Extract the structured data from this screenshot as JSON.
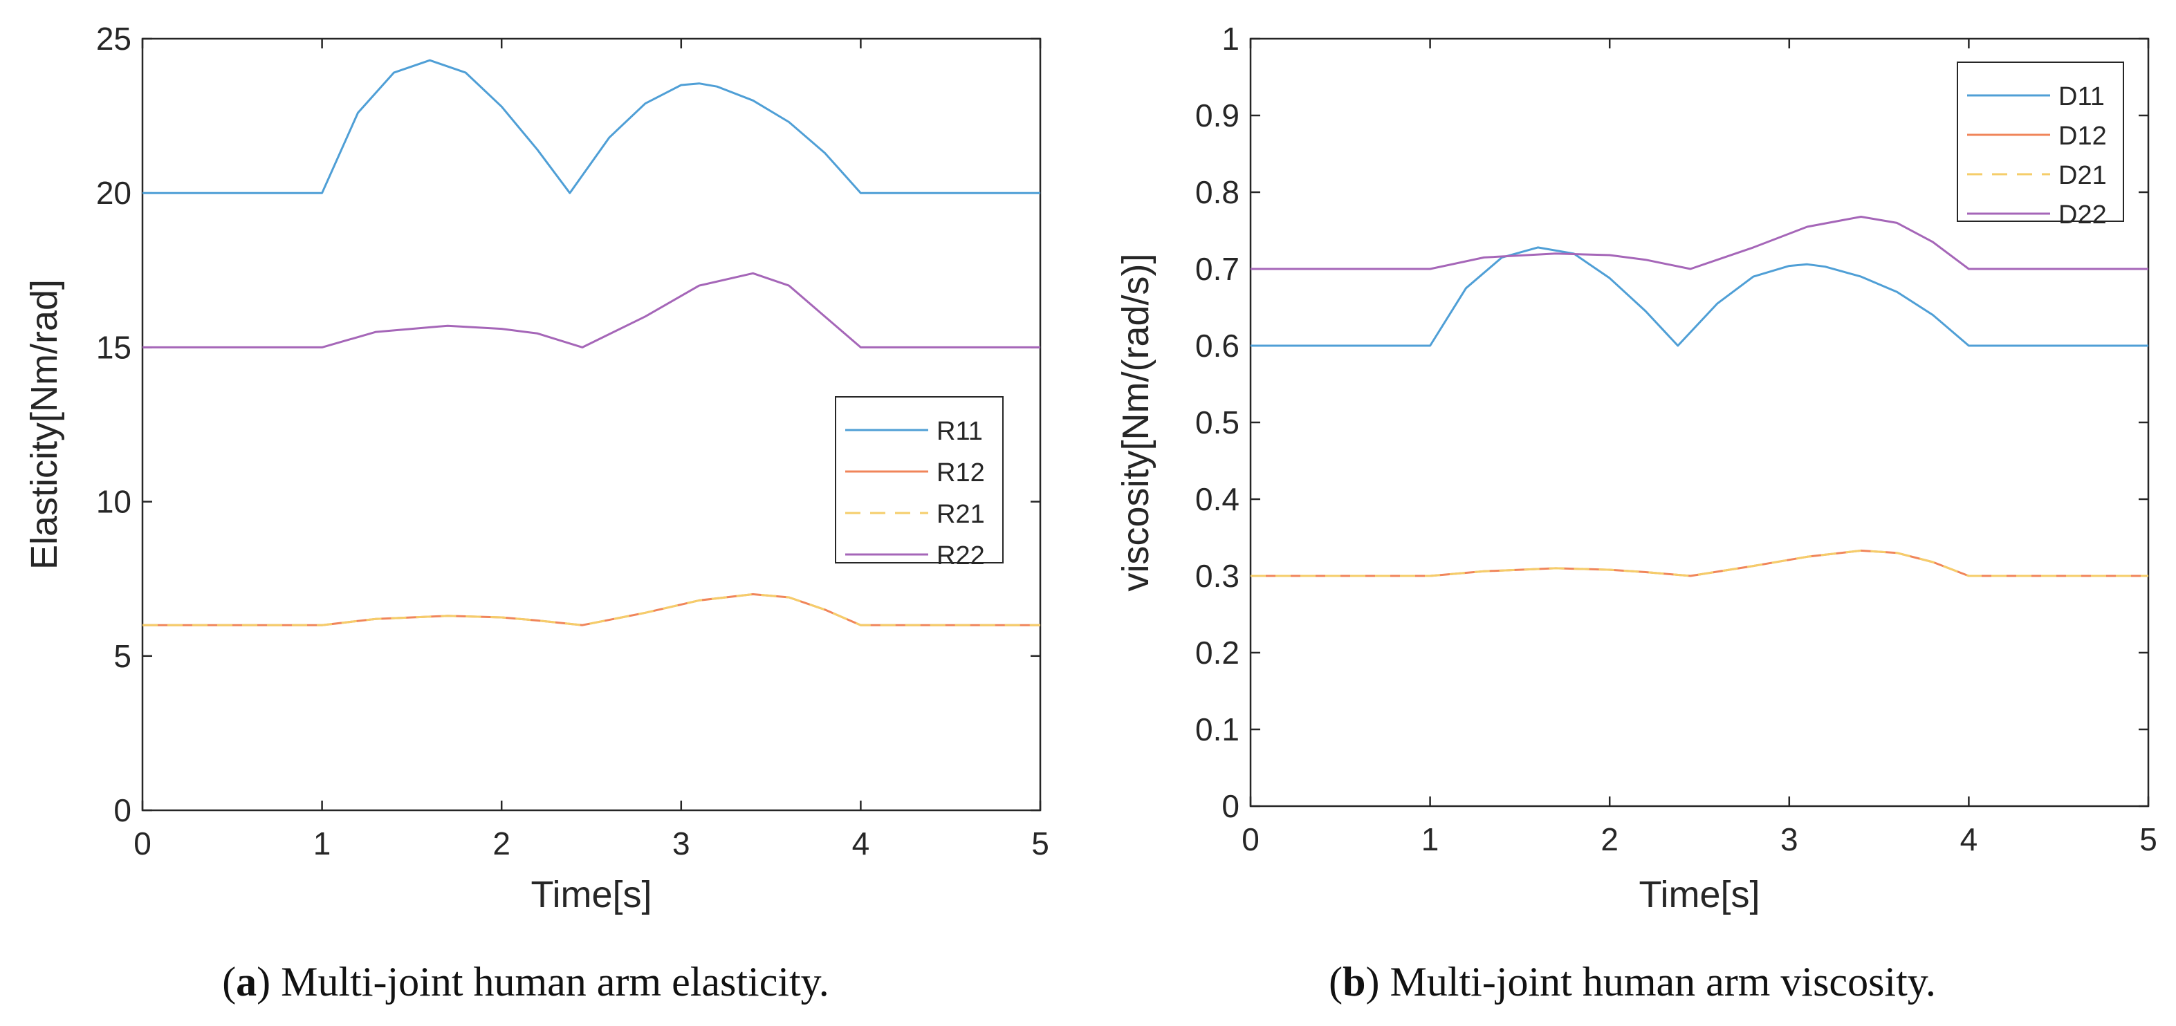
{
  "chart_data": [
    {
      "type": "line",
      "caption_letter": "a",
      "caption_text": "Multi-joint human arm elasticity.",
      "xlabel": "Time[s]",
      "ylabel": "Elasticity[Nm/rad]",
      "xlim": [
        0,
        5
      ],
      "ylim": [
        0,
        25
      ],
      "xticks": [
        0,
        1,
        2,
        3,
        4,
        5
      ],
      "xtick_labels": [
        "0",
        "1",
        "2",
        "3",
        "4",
        "5"
      ],
      "yticks": [
        0,
        5,
        10,
        15,
        20,
        25
      ],
      "ytick_labels": [
        "0",
        "5",
        "10",
        "15",
        "20",
        "25"
      ],
      "grid": false,
      "legend_position": "center-right",
      "series": [
        {
          "name": "R11",
          "color": "#4f9fd6",
          "dashed": false,
          "x": [
            0,
            1,
            1.2,
            1.4,
            1.6,
            1.8,
            2.0,
            2.2,
            2.38,
            2.6,
            2.8,
            3.0,
            3.1,
            3.2,
            3.4,
            3.6,
            3.8,
            4.0,
            5
          ],
          "y": [
            20,
            20,
            22.6,
            23.9,
            24.3,
            23.9,
            22.8,
            21.4,
            20,
            21.8,
            22.9,
            23.5,
            23.55,
            23.45,
            23.0,
            22.3,
            21.3,
            20,
            20
          ]
        },
        {
          "name": "R12",
          "color": "#f0855a",
          "dashed": false,
          "x": [
            0,
            1,
            1.3,
            1.7,
            2.0,
            2.2,
            2.45,
            2.8,
            3.1,
            3.4,
            3.6,
            3.8,
            4.0,
            5
          ],
          "y": [
            6,
            6,
            6.2,
            6.3,
            6.25,
            6.15,
            6,
            6.4,
            6.8,
            7.0,
            6.9,
            6.5,
            6,
            6
          ]
        },
        {
          "name": "R21",
          "color": "#f5cd6a",
          "dashed": true,
          "x": [
            0,
            1,
            1.3,
            1.7,
            2.0,
            2.2,
            2.45,
            2.8,
            3.1,
            3.4,
            3.6,
            3.8,
            4.0,
            5
          ],
          "y": [
            6,
            6,
            6.2,
            6.3,
            6.25,
            6.15,
            6,
            6.4,
            6.8,
            7.0,
            6.9,
            6.5,
            6,
            6
          ]
        },
        {
          "name": "R22",
          "color": "#a566b8",
          "dashed": false,
          "x": [
            0,
            1,
            1.3,
            1.7,
            2.0,
            2.2,
            2.45,
            2.8,
            3.1,
            3.4,
            3.6,
            3.8,
            4.0,
            5
          ],
          "y": [
            15,
            15,
            15.5,
            15.7,
            15.6,
            15.45,
            15,
            16.0,
            17.0,
            17.4,
            17.0,
            16.0,
            15,
            15
          ]
        }
      ]
    },
    {
      "type": "line",
      "caption_letter": "b",
      "caption_text": "Multi-joint human arm viscosity.",
      "xlabel": "Time[s]",
      "ylabel": "viscosity[Nm/(rad/s)]",
      "xlim": [
        0,
        5
      ],
      "ylim": [
        0,
        1
      ],
      "xticks": [
        0,
        1,
        2,
        3,
        4,
        5
      ],
      "xtick_labels": [
        "0",
        "1",
        "2",
        "3",
        "4",
        "5"
      ],
      "yticks": [
        0,
        0.1,
        0.2,
        0.3,
        0.4,
        0.5,
        0.6,
        0.7,
        0.8,
        0.9,
        1
      ],
      "ytick_labels": [
        "0",
        "0.1",
        "0.2",
        "0.3",
        "0.4",
        "0.5",
        "0.6",
        "0.7",
        "0.8",
        "0.9",
        "1"
      ],
      "grid": false,
      "legend_position": "top-right",
      "series": [
        {
          "name": "D11",
          "color": "#4f9fd6",
          "dashed": false,
          "x": [
            0,
            1,
            1.2,
            1.4,
            1.6,
            1.8,
            2.0,
            2.2,
            2.38,
            2.6,
            2.8,
            3.0,
            3.1,
            3.2,
            3.4,
            3.6,
            3.8,
            4.0,
            5
          ],
          "y": [
            0.6,
            0.6,
            0.675,
            0.715,
            0.728,
            0.72,
            0.688,
            0.645,
            0.6,
            0.655,
            0.69,
            0.704,
            0.706,
            0.703,
            0.69,
            0.67,
            0.64,
            0.6,
            0.6
          ]
        },
        {
          "name": "D12",
          "color": "#f0855a",
          "dashed": false,
          "x": [
            0,
            1,
            1.3,
            1.7,
            2.0,
            2.2,
            2.45,
            2.8,
            3.1,
            3.4,
            3.6,
            3.8,
            4.0,
            5
          ],
          "y": [
            0.3,
            0.3,
            0.306,
            0.31,
            0.308,
            0.305,
            0.3,
            0.313,
            0.325,
            0.333,
            0.33,
            0.318,
            0.3,
            0.3
          ]
        },
        {
          "name": "D21",
          "color": "#f5cd6a",
          "dashed": true,
          "x": [
            0,
            1,
            1.3,
            1.7,
            2.0,
            2.2,
            2.45,
            2.8,
            3.1,
            3.4,
            3.6,
            3.8,
            4.0,
            5
          ],
          "y": [
            0.3,
            0.3,
            0.306,
            0.31,
            0.308,
            0.305,
            0.3,
            0.313,
            0.325,
            0.333,
            0.33,
            0.318,
            0.3,
            0.3
          ]
        },
        {
          "name": "D22",
          "color": "#a566b8",
          "dashed": false,
          "x": [
            0,
            1,
            1.3,
            1.7,
            2.0,
            2.2,
            2.45,
            2.8,
            3.1,
            3.4,
            3.6,
            3.8,
            4.0,
            5
          ],
          "y": [
            0.7,
            0.7,
            0.715,
            0.72,
            0.718,
            0.712,
            0.7,
            0.728,
            0.755,
            0.768,
            0.76,
            0.735,
            0.7,
            0.7
          ]
        }
      ]
    }
  ]
}
